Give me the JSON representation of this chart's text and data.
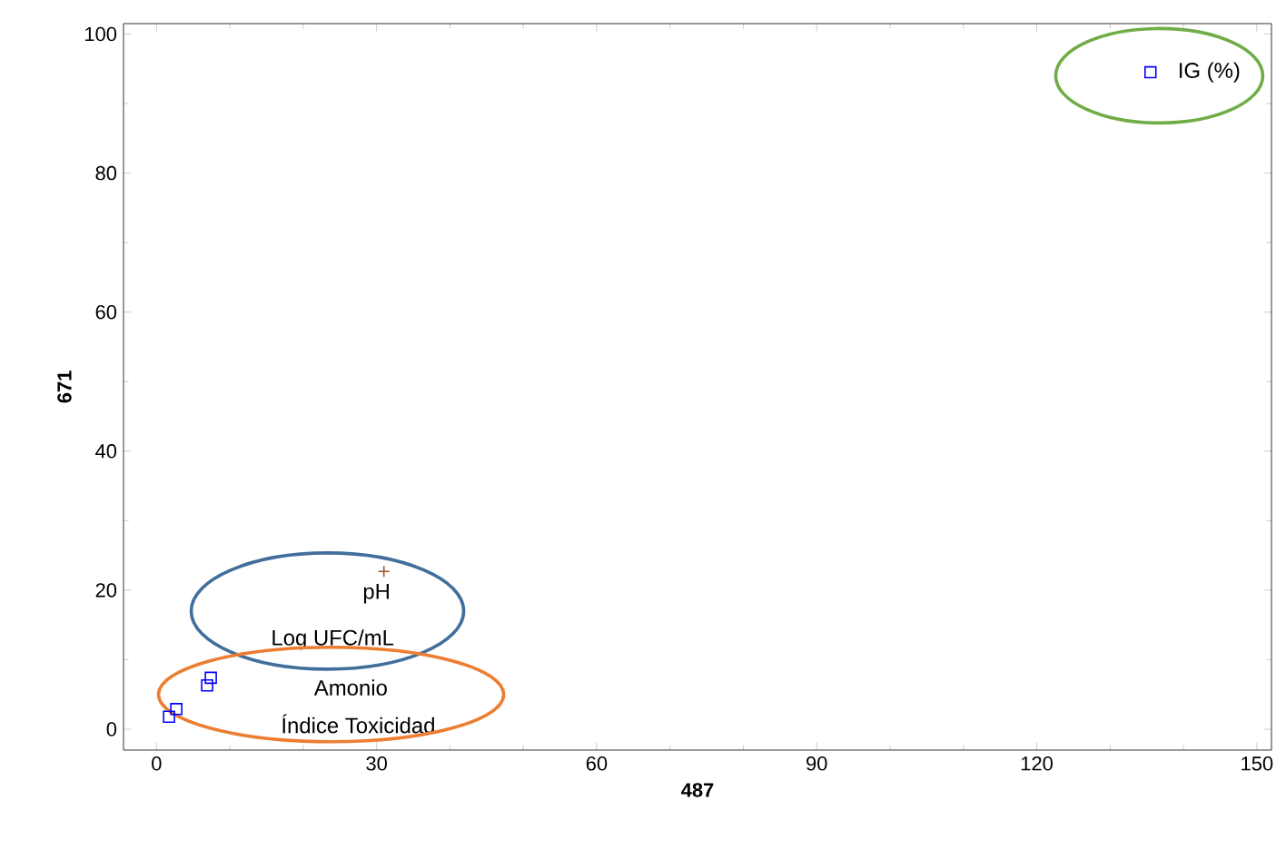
{
  "chart_data": {
    "type": "scatter",
    "xlabel": "487",
    "ylabel": "671",
    "xlim": [
      -4.5,
      152
    ],
    "ylim": [
      -3,
      101.5
    ],
    "xticks": [
      0,
      30,
      60,
      90,
      120,
      150
    ],
    "yticks": [
      0,
      20,
      40,
      60,
      80,
      100
    ],
    "grid": false,
    "series": [
      {
        "color": "#0000ff",
        "marker": "square",
        "x": [
          1.7,
          2.7,
          6.9,
          7.4,
          135.5
        ],
        "values": [
          1.8,
          2.9,
          6.3,
          7.4,
          94.5
        ]
      },
      {
        "color": "#a0522d",
        "marker": "cross",
        "x": [
          31
        ],
        "values": [
          22.7
        ]
      }
    ],
    "annotations": [
      "pH",
      "Log UFC/mL",
      "Amonio",
      "Índice Toxicidad",
      "IG (%)"
    ]
  }
}
